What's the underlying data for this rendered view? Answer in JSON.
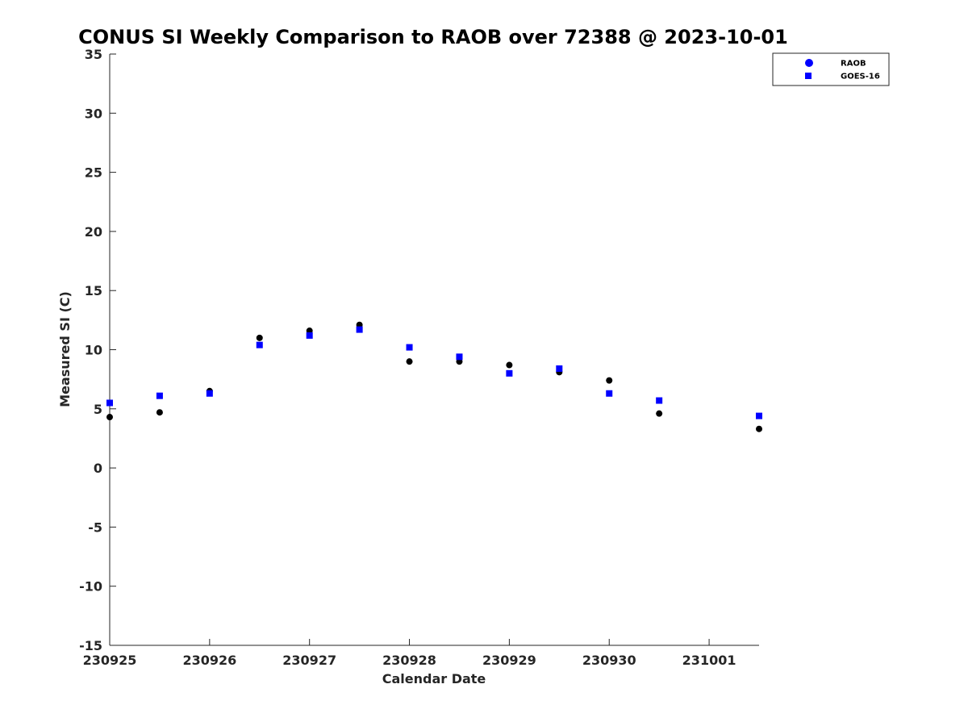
{
  "chart_data": {
    "type": "scatter",
    "title": "CONUS SI Weekly Comparison to RAOB over 72388 @ 2023-10-01",
    "xlabel": "Calendar Date",
    "ylabel": "Measured SI (C)",
    "x_tick_labels": [
      "230925",
      "230926",
      "230927",
      "230928",
      "230929",
      "230930",
      "231001"
    ],
    "x_tick_dates": [
      "2023-09-25",
      "2023-09-26",
      "2023-09-27",
      "2023-09-28",
      "2023-09-29",
      "2023-09-30",
      "2023-10-01"
    ],
    "xlim": [
      "2023-09-25T00:00",
      "2023-10-01T12:00"
    ],
    "ylim": [
      -15,
      35
    ],
    "y_ticks": [
      -15,
      -10,
      -5,
      0,
      5,
      10,
      15,
      20,
      25,
      30,
      35
    ],
    "grid": false,
    "legend_position": "top-right",
    "series": [
      {
        "name": "RAOB",
        "marker": "circle",
        "color": "#000000",
        "legend_color": "#0000ff",
        "x": [
          "2023-09-25T00:00",
          "2023-09-25T12:00",
          "2023-09-26T00:00",
          "2023-09-26T12:00",
          "2023-09-27T00:00",
          "2023-09-27T12:00",
          "2023-09-28T00:00",
          "2023-09-28T12:00",
          "2023-09-29T00:00",
          "2023-09-29T12:00",
          "2023-09-30T00:00",
          "2023-09-30T12:00",
          "2023-10-01T12:00"
        ],
        "y": [
          4.3,
          4.7,
          6.5,
          11.0,
          11.6,
          12.1,
          9.0,
          9.0,
          8.7,
          8.1,
          7.4,
          4.6,
          3.3
        ]
      },
      {
        "name": "GOES-16",
        "marker": "square",
        "color": "#0000ff",
        "legend_color": "#0000ff",
        "x": [
          "2023-09-25T00:00",
          "2023-09-25T12:00",
          "2023-09-26T00:00",
          "2023-09-26T12:00",
          "2023-09-27T00:00",
          "2023-09-27T12:00",
          "2023-09-28T00:00",
          "2023-09-28T12:00",
          "2023-09-29T00:00",
          "2023-09-29T12:00",
          "2023-09-30T00:00",
          "2023-09-30T12:00",
          "2023-10-01T12:00"
        ],
        "y": [
          5.5,
          6.1,
          6.3,
          10.4,
          11.2,
          11.7,
          10.2,
          9.4,
          8.0,
          8.4,
          6.3,
          5.7,
          4.4
        ]
      }
    ]
  }
}
